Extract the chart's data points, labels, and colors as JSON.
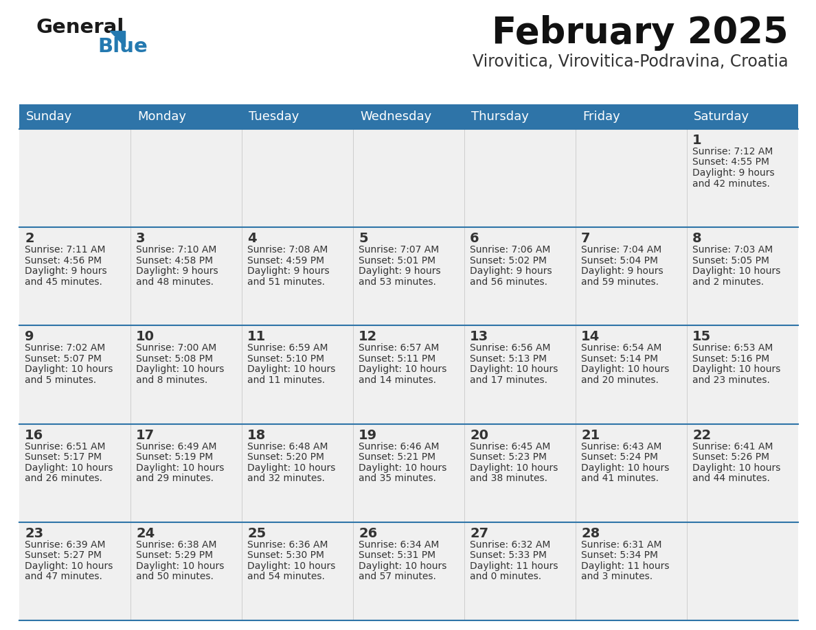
{
  "title": "February 2025",
  "subtitle": "Virovitica, Virovitica-Podravina, Croatia",
  "header_bg": "#2E74A8",
  "header_text": "#FFFFFF",
  "cell_bg": "#F0F0F0",
  "separator_color": "#2E74A8",
  "text_color": "#333333",
  "day_headers": [
    "Sunday",
    "Monday",
    "Tuesday",
    "Wednesday",
    "Thursday",
    "Friday",
    "Saturday"
  ],
  "days": [
    {
      "day": 1,
      "col": 6,
      "row": 0,
      "sunrise": "7:12 AM",
      "sunset": "4:55 PM",
      "daylight": "9 hours and 42 minutes."
    },
    {
      "day": 2,
      "col": 0,
      "row": 1,
      "sunrise": "7:11 AM",
      "sunset": "4:56 PM",
      "daylight": "9 hours and 45 minutes."
    },
    {
      "day": 3,
      "col": 1,
      "row": 1,
      "sunrise": "7:10 AM",
      "sunset": "4:58 PM",
      "daylight": "9 hours and 48 minutes."
    },
    {
      "day": 4,
      "col": 2,
      "row": 1,
      "sunrise": "7:08 AM",
      "sunset": "4:59 PM",
      "daylight": "9 hours and 51 minutes."
    },
    {
      "day": 5,
      "col": 3,
      "row": 1,
      "sunrise": "7:07 AM",
      "sunset": "5:01 PM",
      "daylight": "9 hours and 53 minutes."
    },
    {
      "day": 6,
      "col": 4,
      "row": 1,
      "sunrise": "7:06 AM",
      "sunset": "5:02 PM",
      "daylight": "9 hours and 56 minutes."
    },
    {
      "day": 7,
      "col": 5,
      "row": 1,
      "sunrise": "7:04 AM",
      "sunset": "5:04 PM",
      "daylight": "9 hours and 59 minutes."
    },
    {
      "day": 8,
      "col": 6,
      "row": 1,
      "sunrise": "7:03 AM",
      "sunset": "5:05 PM",
      "daylight": "10 hours and 2 minutes."
    },
    {
      "day": 9,
      "col": 0,
      "row": 2,
      "sunrise": "7:02 AM",
      "sunset": "5:07 PM",
      "daylight": "10 hours and 5 minutes."
    },
    {
      "day": 10,
      "col": 1,
      "row": 2,
      "sunrise": "7:00 AM",
      "sunset": "5:08 PM",
      "daylight": "10 hours and 8 minutes."
    },
    {
      "day": 11,
      "col": 2,
      "row": 2,
      "sunrise": "6:59 AM",
      "sunset": "5:10 PM",
      "daylight": "10 hours and 11 minutes."
    },
    {
      "day": 12,
      "col": 3,
      "row": 2,
      "sunrise": "6:57 AM",
      "sunset": "5:11 PM",
      "daylight": "10 hours and 14 minutes."
    },
    {
      "day": 13,
      "col": 4,
      "row": 2,
      "sunrise": "6:56 AM",
      "sunset": "5:13 PM",
      "daylight": "10 hours and 17 minutes."
    },
    {
      "day": 14,
      "col": 5,
      "row": 2,
      "sunrise": "6:54 AM",
      "sunset": "5:14 PM",
      "daylight": "10 hours and 20 minutes."
    },
    {
      "day": 15,
      "col": 6,
      "row": 2,
      "sunrise": "6:53 AM",
      "sunset": "5:16 PM",
      "daylight": "10 hours and 23 minutes."
    },
    {
      "day": 16,
      "col": 0,
      "row": 3,
      "sunrise": "6:51 AM",
      "sunset": "5:17 PM",
      "daylight": "10 hours and 26 minutes."
    },
    {
      "day": 17,
      "col": 1,
      "row": 3,
      "sunrise": "6:49 AM",
      "sunset": "5:19 PM",
      "daylight": "10 hours and 29 minutes."
    },
    {
      "day": 18,
      "col": 2,
      "row": 3,
      "sunrise": "6:48 AM",
      "sunset": "5:20 PM",
      "daylight": "10 hours and 32 minutes."
    },
    {
      "day": 19,
      "col": 3,
      "row": 3,
      "sunrise": "6:46 AM",
      "sunset": "5:21 PM",
      "daylight": "10 hours and 35 minutes."
    },
    {
      "day": 20,
      "col": 4,
      "row": 3,
      "sunrise": "6:45 AM",
      "sunset": "5:23 PM",
      "daylight": "10 hours and 38 minutes."
    },
    {
      "day": 21,
      "col": 5,
      "row": 3,
      "sunrise": "6:43 AM",
      "sunset": "5:24 PM",
      "daylight": "10 hours and 41 minutes."
    },
    {
      "day": 22,
      "col": 6,
      "row": 3,
      "sunrise": "6:41 AM",
      "sunset": "5:26 PM",
      "daylight": "10 hours and 44 minutes."
    },
    {
      "day": 23,
      "col": 0,
      "row": 4,
      "sunrise": "6:39 AM",
      "sunset": "5:27 PM",
      "daylight": "10 hours and 47 minutes."
    },
    {
      "day": 24,
      "col": 1,
      "row": 4,
      "sunrise": "6:38 AM",
      "sunset": "5:29 PM",
      "daylight": "10 hours and 50 minutes."
    },
    {
      "day": 25,
      "col": 2,
      "row": 4,
      "sunrise": "6:36 AM",
      "sunset": "5:30 PM",
      "daylight": "10 hours and 54 minutes."
    },
    {
      "day": 26,
      "col": 3,
      "row": 4,
      "sunrise": "6:34 AM",
      "sunset": "5:31 PM",
      "daylight": "10 hours and 57 minutes."
    },
    {
      "day": 27,
      "col": 4,
      "row": 4,
      "sunrise": "6:32 AM",
      "sunset": "5:33 PM",
      "daylight": "11 hours and 0 minutes."
    },
    {
      "day": 28,
      "col": 5,
      "row": 4,
      "sunrise": "6:31 AM",
      "sunset": "5:34 PM",
      "daylight": "11 hours and 3 minutes."
    }
  ],
  "num_rows": 5,
  "num_cols": 7,
  "logo_text_general": "General",
  "logo_text_blue": "Blue",
  "logo_color_general": "#1a1a1a",
  "logo_color_blue": "#2479B0",
  "logo_triangle_color": "#2479B0",
  "title_fontsize": 38,
  "subtitle_fontsize": 17,
  "header_fontsize": 13,
  "daynum_fontsize": 14,
  "cell_fontsize": 10
}
